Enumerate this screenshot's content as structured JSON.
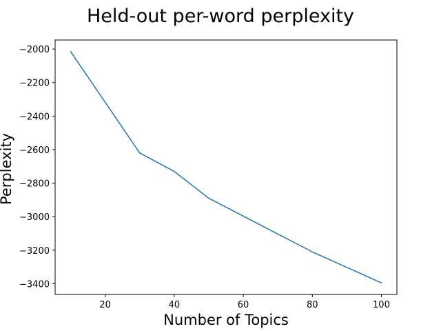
{
  "chart_data": {
    "type": "line",
    "title": "Held-out per-word perplexity",
    "xlabel": "Number of Topics",
    "ylabel": "Perplexity",
    "x": [
      10,
      30,
      40,
      50,
      80,
      100
    ],
    "series": [
      {
        "values": [
          -2015,
          -2620,
          -2730,
          -2890,
          -3210,
          -3395
        ],
        "color": "#1f77b4"
      }
    ],
    "xlim": [
      5.5,
      104.5
    ],
    "ylim": [
      -3464,
      -1946
    ],
    "xticks": [
      20,
      40,
      60,
      80,
      100
    ],
    "xtick_labels": [
      "20",
      "40",
      "60",
      "80",
      "100"
    ],
    "yticks": [
      -2000,
      -2200,
      -2400,
      -2600,
      -2800,
      -3000,
      -3200,
      -3400
    ],
    "ytick_labels": [
      "−2000",
      "−2200",
      "−2400",
      "−2600",
      "−2800",
      "−3000",
      "−3200",
      "−3400"
    ],
    "grid": false,
    "legend": "none"
  }
}
